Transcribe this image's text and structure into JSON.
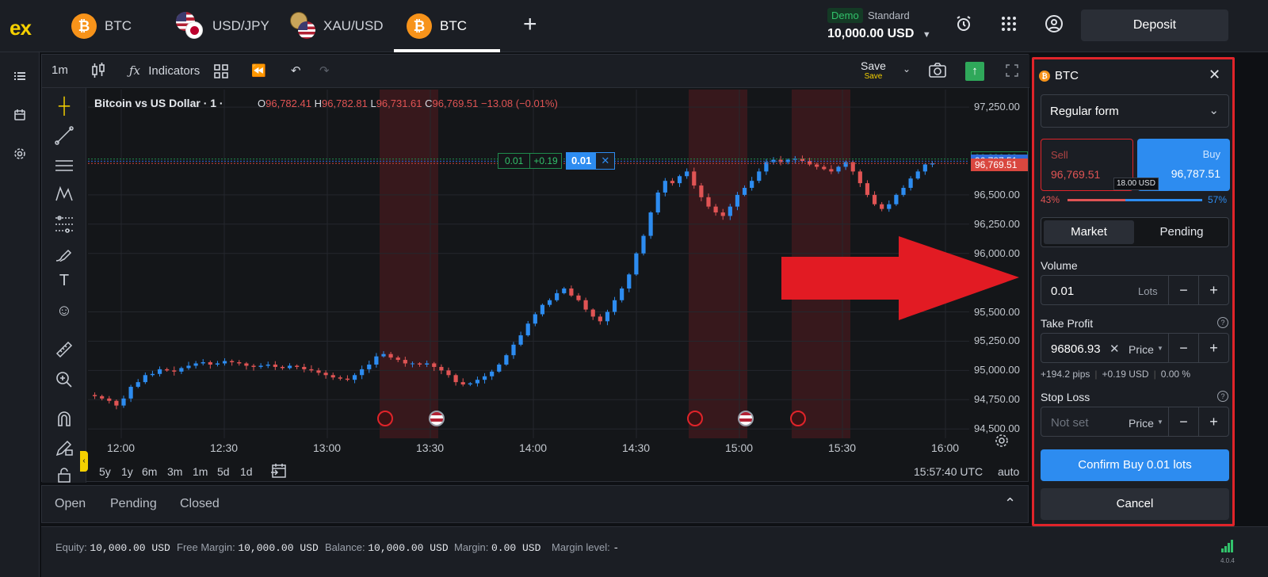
{
  "topbar": {
    "logo": "ex",
    "tabs": [
      {
        "label": "BTC",
        "icon": "bitcoin-icon"
      },
      {
        "label": "USD/JPY",
        "icon": "usd-jpy-flags-icon"
      },
      {
        "label": "XAU/USD",
        "icon": "xau-usd-icon"
      },
      {
        "label": "BTC",
        "icon": "bitcoin-icon",
        "active": true
      }
    ],
    "add_tab": "+",
    "account_type": "Demo",
    "account_plan": "Standard",
    "balance": "10,000.00 USD",
    "deposit_label": "Deposit"
  },
  "chart_toolbar": {
    "timeframe": "1m",
    "indicators_label": "Indicators",
    "save_label": "Save",
    "save_sub": "Save"
  },
  "chart_data": {
    "type": "candlestick",
    "title": "Bitcoin vs US Dollar · 1 ·",
    "ohlc": {
      "O": "96,782.41",
      "H": "96,782.81",
      "L": "96,731.61",
      "C": "96,769.51",
      "change": "−13.08 (−0.01%)"
    },
    "y_ticks": [
      "97,250.00",
      "96,500.00",
      "96,250.00",
      "96,000.00",
      "95,500.00",
      "95,250.00",
      "95,000.00",
      "94,750.00",
      "94,500.00"
    ],
    "ylim": [
      94420,
      97400
    ],
    "x_ticks": [
      "12:00",
      "12:30",
      "13:00",
      "13:30",
      "14:00",
      "14:30",
      "15:00",
      "15:30",
      "16:00"
    ],
    "price_labels": [
      {
        "value": "96,806.93",
        "price": 96806.93,
        "color": "#1f8a4c"
      },
      {
        "value": "96,787.51",
        "price": 96787.51,
        "color": "#2f6bd8"
      },
      {
        "value": "96,769.51",
        "price": 96769.51,
        "color": "#d9473f"
      }
    ],
    "trade_line": {
      "volume": "0.01",
      "tp_value": "+0.19",
      "badge": "0.01"
    },
    "close_series": [
      94780,
      94760,
      94740,
      94700,
      94760,
      94860,
      94900,
      94960,
      94970,
      95010,
      95000,
      94990,
      95020,
      95040,
      95060,
      95070,
      95050,
      95060,
      95080,
      95070,
      95060,
      95040,
      95030,
      95040,
      95050,
      95030,
      95020,
      95040,
      95030,
      95010,
      95000,
      94980,
      94960,
      94940,
      94930,
      94920,
      94960,
      95010,
      95050,
      95120,
      95140,
      95110,
      95090,
      95060,
      95060,
      95050,
      95060,
      95030,
      95000,
      94960,
      94900,
      94880,
      94890,
      94920,
      94950,
      94990,
      95050,
      95130,
      95220,
      95300,
      95400,
      95480,
      95560,
      95600,
      95660,
      95700,
      95640,
      95600,
      95520,
      95460,
      95420,
      95500,
      95600,
      95700,
      95820,
      96000,
      96150,
      96350,
      96520,
      96620,
      96600,
      96660,
      96700,
      96580,
      96480,
      96400,
      96350,
      96320,
      96400,
      96500,
      96560,
      96620,
      96700,
      96780,
      96800,
      96780,
      96800,
      96810,
      96790,
      96760,
      96740,
      96720,
      96700,
      96740,
      96780,
      96700,
      96600,
      96500,
      96420,
      96380,
      96420,
      96500,
      96560,
      96640,
      96700,
      96760,
      96769.51
    ],
    "series": [
      {
        "name": "",
        "values": []
      }
    ]
  },
  "chart_bottom": {
    "ranges": [
      "5y",
      "1y",
      "6m",
      "3m",
      "1m",
      "5d",
      "1d"
    ],
    "clock": "15:57:40 UTC",
    "scale_mode": "auto"
  },
  "order_tabs": [
    "Open",
    "Pending",
    "Closed"
  ],
  "status": {
    "equity_label": "Equity:",
    "equity": "10,000.00 USD",
    "free_margin_label": "Free Margin:",
    "free_margin": "10,000.00 USD",
    "balance_label": "Balance:",
    "balance": "10,000.00 USD",
    "margin_label": "Margin:",
    "margin": "0.00 USD",
    "margin_level_label": "Margin level:",
    "margin_level": "-",
    "version": "4.0.4"
  },
  "panel": {
    "symbol": "BTC",
    "form_type": "Regular form",
    "sell_label": "Sell",
    "sell_price": "96,769.51",
    "buy_label": "Buy",
    "buy_price": "96,787.51",
    "spread": "18.00 USD",
    "sell_pct": "43%",
    "buy_pct": "57%",
    "sentiment_sell": 0.43,
    "order_tabs": [
      "Market",
      "Pending"
    ],
    "volume_label": "Volume",
    "volume_value": "0.01",
    "volume_unit": "Lots",
    "tp_label": "Take Profit",
    "tp_value": "96806.93",
    "tp_mode": "Price",
    "tp_pips": "+194.2 pips",
    "tp_usd": "+0.19 USD",
    "tp_pct": "0.00 %",
    "sl_label": "Stop Loss",
    "sl_placeholder": "Not set",
    "sl_mode": "Price",
    "confirm_label": "Confirm Buy 0.01 lots",
    "cancel_label": "Cancel"
  }
}
